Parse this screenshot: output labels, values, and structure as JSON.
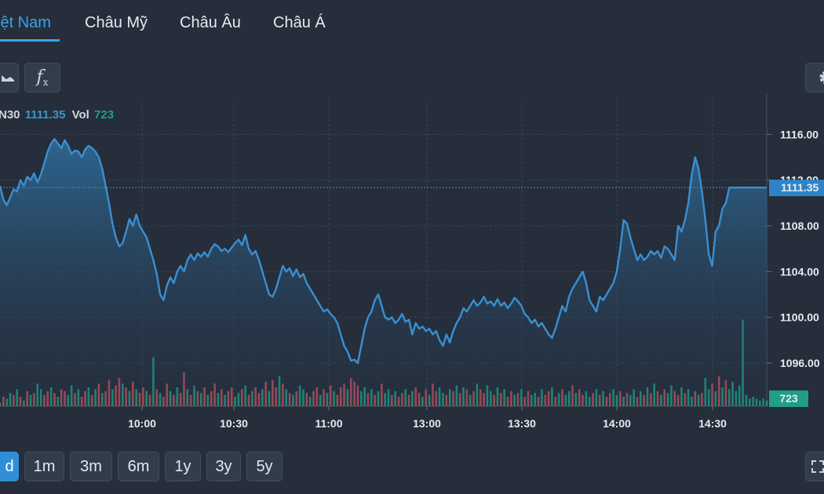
{
  "tabs": [
    {
      "label": "iệt Nam",
      "active": true
    },
    {
      "label": "Châu Mỹ",
      "active": false
    },
    {
      "label": "Châu Âu",
      "active": false
    },
    {
      "label": "Châu Á",
      "active": false
    }
  ],
  "toolbar": {
    "chart_type_icon": "area-chart-icon",
    "indicator_icon": "function-fx-icon",
    "indicator_label": "f",
    "indicator_sub": "x",
    "settings_icon": "gear-icon"
  },
  "legend": {
    "symbol": "N30",
    "price": "1111.35",
    "vol_label": "Vol",
    "vol_value": "723"
  },
  "range_buttons": [
    {
      "label": "d",
      "active": true
    },
    {
      "label": "1m",
      "active": false
    },
    {
      "label": "3m",
      "active": false
    },
    {
      "label": "6m",
      "active": false
    },
    {
      "label": "1y",
      "active": false
    },
    {
      "label": "3y",
      "active": false
    },
    {
      "label": "5y",
      "active": false
    }
  ],
  "colors": {
    "line": "#3a8fd0",
    "price_tag": "#2f84c8",
    "volume_up": "#1f9f8a",
    "volume_down": "#c0515d",
    "grid": "#3b4553"
  },
  "chart_data": {
    "type": "area",
    "title": "",
    "xlabel": "",
    "ylabel": "",
    "ylim": [
      1093.6,
      1118.2
    ],
    "y_ticks": [
      1096,
      1100,
      1104,
      1108,
      1112,
      1116
    ],
    "y_tick_labels": [
      "1096.00",
      "1100.00",
      "1104.00",
      "1108.00",
      "1112.00",
      "1116.00"
    ],
    "x_ticks": [
      "10:00",
      "10:30",
      "11:00",
      "13:00",
      "13:30",
      "14:00",
      "14:30"
    ],
    "last_price": 1111.35,
    "last_price_label": "1111.35",
    "last_volume": 723,
    "last_volume_label": "723",
    "series": [
      {
        "values": [
          1111.5,
          1110.3,
          1109.8,
          1110.5,
          1111.2,
          1111.0,
          1112.0,
          1111.5,
          1112.3,
          1112.0,
          1112.6,
          1111.8,
          1112.5,
          1113.5,
          1114.5,
          1115.2,
          1115.6,
          1115.2,
          1114.8,
          1115.5,
          1115.0,
          1114.3,
          1114.6,
          1114.5,
          1114.0,
          1114.7,
          1115.0,
          1114.8,
          1114.5,
          1114.0,
          1113.0,
          1111.5,
          1110.0,
          1108.2,
          1107.0,
          1106.2,
          1106.5,
          1107.5,
          1108.6,
          1108.0,
          1109.0,
          1108.0,
          1107.5,
          1107.0,
          1106.0,
          1105.0,
          1103.8,
          1102.0,
          1101.5,
          1102.8,
          1103.5,
          1103.0,
          1104.0,
          1104.5,
          1104.0,
          1105.0,
          1105.5,
          1105.0,
          1105.6,
          1105.3,
          1105.7,
          1105.3,
          1106.0,
          1106.4,
          1106.2,
          1105.8,
          1106.0,
          1105.7,
          1106.1,
          1106.5,
          1106.8,
          1106.3,
          1107.2,
          1106.0,
          1105.5,
          1105.8,
          1105.0,
          1104.0,
          1103.0,
          1102.0,
          1101.8,
          1102.5,
          1103.5,
          1104.5,
          1104.0,
          1104.3,
          1103.6,
          1104.2,
          1103.5,
          1103.8,
          1103.0,
          1102.5,
          1102.0,
          1101.5,
          1101.0,
          1100.5,
          1100.7,
          1100.3,
          1100.0,
          1099.5,
          1098.5,
          1097.5,
          1097.0,
          1096.2,
          1096.3,
          1096.0,
          1097.5,
          1099.0,
          1100.0,
          1100.5,
          1101.5,
          1102.0,
          1101.0,
          1100.0,
          1099.8,
          1100.0,
          1099.5,
          1099.8,
          1100.3,
          1099.6,
          1099.8,
          1098.5,
          1099.5,
          1099.0,
          1099.2,
          1098.8,
          1099.0,
          1098.5,
          1098.8,
          1098.0,
          1097.5,
          1098.5,
          1097.8,
          1098.8,
          1099.5,
          1100.0,
          1100.8,
          1100.5,
          1101.0,
          1101.5,
          1101.0,
          1101.3,
          1101.8,
          1101.2,
          1101.4,
          1101.0,
          1101.6,
          1101.0,
          1101.3,
          1100.8,
          1101.2,
          1101.7,
          1101.4,
          1101.0,
          1100.3,
          1100.0,
          1099.5,
          1099.8,
          1099.2,
          1099.5,
          1099.0,
          1098.5,
          1098.2,
          1099.0,
          1100.0,
          1101.0,
          1100.5,
          1101.8,
          1102.5,
          1103.0,
          1103.5,
          1104.0,
          1103.0,
          1101.5,
          1101.0,
          1100.5,
          1101.8,
          1101.5,
          1102.0,
          1102.5,
          1103.0,
          1104.0,
          1106.0,
          1108.5,
          1108.2,
          1107.0,
          1106.0,
          1105.0,
          1105.5,
          1105.0,
          1105.3,
          1105.8,
          1105.5,
          1105.8,
          1105.2,
          1106.2,
          1106.0,
          1105.5,
          1105.0,
          1108.0,
          1107.5,
          1108.5,
          1110.0,
          1112.5,
          1114.0,
          1113.0,
          1111.0,
          1108.5,
          1105.5,
          1104.5,
          1107.5,
          1108.0,
          1109.5,
          1110.0,
          1111.35,
          1111.35,
          1111.35,
          1111.35,
          1111.35,
          1111.35,
          1111.35,
          1111.35,
          1111.35,
          1111.35,
          1111.35,
          1111.35
        ]
      }
    ],
    "volume": [
      2,
      5,
      4,
      7,
      6,
      9,
      5,
      3,
      8,
      6,
      7,
      12,
      9,
      6,
      8,
      10,
      7,
      5,
      9,
      8,
      6,
      11,
      7,
      9,
      5,
      8,
      10,
      6,
      9,
      12,
      7,
      8,
      14,
      9,
      11,
      15,
      12,
      10,
      8,
      13,
      9,
      7,
      10,
      8,
      6,
      26,
      9,
      7,
      5,
      12,
      8,
      6,
      10,
      7,
      18,
      9,
      6,
      11,
      8,
      7,
      10,
      6,
      8,
      12,
      7,
      9,
      6,
      8,
      10,
      5,
      7,
      9,
      11,
      6,
      8,
      10,
      7,
      9,
      13,
      8,
      14,
      10,
      16,
      12,
      9,
      7,
      6,
      8,
      11,
      9,
      7,
      5,
      8,
      10,
      6,
      9,
      7,
      11,
      8,
      6,
      10,
      12,
      9,
      15,
      13,
      11,
      8,
      10,
      7,
      9,
      6,
      8,
      12,
      7,
      9,
      6,
      8,
      5,
      7,
      9,
      6,
      8,
      10,
      7,
      5,
      9,
      6,
      12,
      8,
      10,
      7,
      6,
      9,
      8,
      11,
      7,
      10,
      9,
      6,
      8,
      12,
      9,
      7,
      11,
      8,
      6,
      10,
      7,
      9,
      5,
      8,
      6,
      7,
      9,
      5,
      8,
      6,
      7,
      5,
      9,
      6,
      8,
      10,
      5,
      7,
      9,
      6,
      8,
      11,
      7,
      9,
      6,
      8,
      5,
      7,
      9,
      6,
      8,
      5,
      7,
      9,
      6,
      8,
      5,
      7,
      6,
      9,
      5,
      8,
      6,
      10,
      7,
      12,
      8,
      6,
      9,
      7,
      11,
      8,
      6,
      10,
      7,
      9,
      5,
      8,
      6,
      7,
      15,
      9,
      12,
      8,
      16,
      10,
      14,
      9,
      13,
      8,
      11,
      46,
      6,
      4,
      5,
      4,
      3,
      4,
      3,
      2,
      2,
      3,
      2,
      2
    ],
    "volume_up": [
      true,
      false,
      true,
      true,
      false,
      true,
      false,
      true,
      false,
      true,
      false,
      true,
      true,
      false,
      false,
      true,
      false,
      true,
      false,
      false,
      true,
      true,
      false,
      true,
      false,
      false,
      true,
      false,
      true,
      false,
      true,
      false,
      false,
      true,
      false,
      false,
      true,
      false,
      true,
      false,
      true,
      false,
      false,
      true,
      false,
      true,
      false,
      true,
      false,
      false,
      true,
      false,
      true,
      false,
      false,
      true,
      false,
      true,
      false,
      true,
      false,
      true,
      false,
      false,
      true,
      false,
      true,
      false,
      false,
      true,
      true,
      false,
      true,
      false,
      true,
      false,
      false,
      true,
      false,
      true,
      false,
      false,
      true,
      false,
      true,
      false,
      true,
      false,
      true,
      true,
      false,
      true,
      false,
      false,
      true,
      false,
      true,
      false,
      true,
      false,
      false,
      false,
      true,
      false,
      false,
      false,
      true,
      true,
      false,
      true,
      false,
      true,
      false,
      true,
      true,
      false,
      true,
      false,
      false,
      true,
      false,
      true,
      false,
      false,
      true,
      false,
      true,
      false,
      false,
      true,
      true,
      false,
      true,
      false,
      true,
      false,
      true,
      false,
      true,
      false,
      true,
      false,
      false,
      true,
      true,
      false,
      true,
      false,
      true,
      false,
      false,
      true,
      false,
      true,
      false,
      false,
      true,
      true,
      false,
      true,
      false,
      false,
      true,
      false,
      true,
      false,
      true,
      true,
      false,
      true,
      false,
      false,
      true,
      true,
      false,
      true,
      false,
      true,
      false,
      false,
      true,
      true,
      false,
      true,
      false,
      true,
      true,
      false,
      true,
      false,
      true,
      false,
      true,
      false,
      true,
      false,
      true,
      true,
      false,
      false,
      true,
      false,
      true,
      true,
      false,
      true,
      false,
      true,
      true,
      false,
      true,
      false,
      true,
      false,
      true,
      true,
      true,
      true,
      true,
      true,
      true,
      true,
      true,
      true,
      true,
      true
    ]
  }
}
